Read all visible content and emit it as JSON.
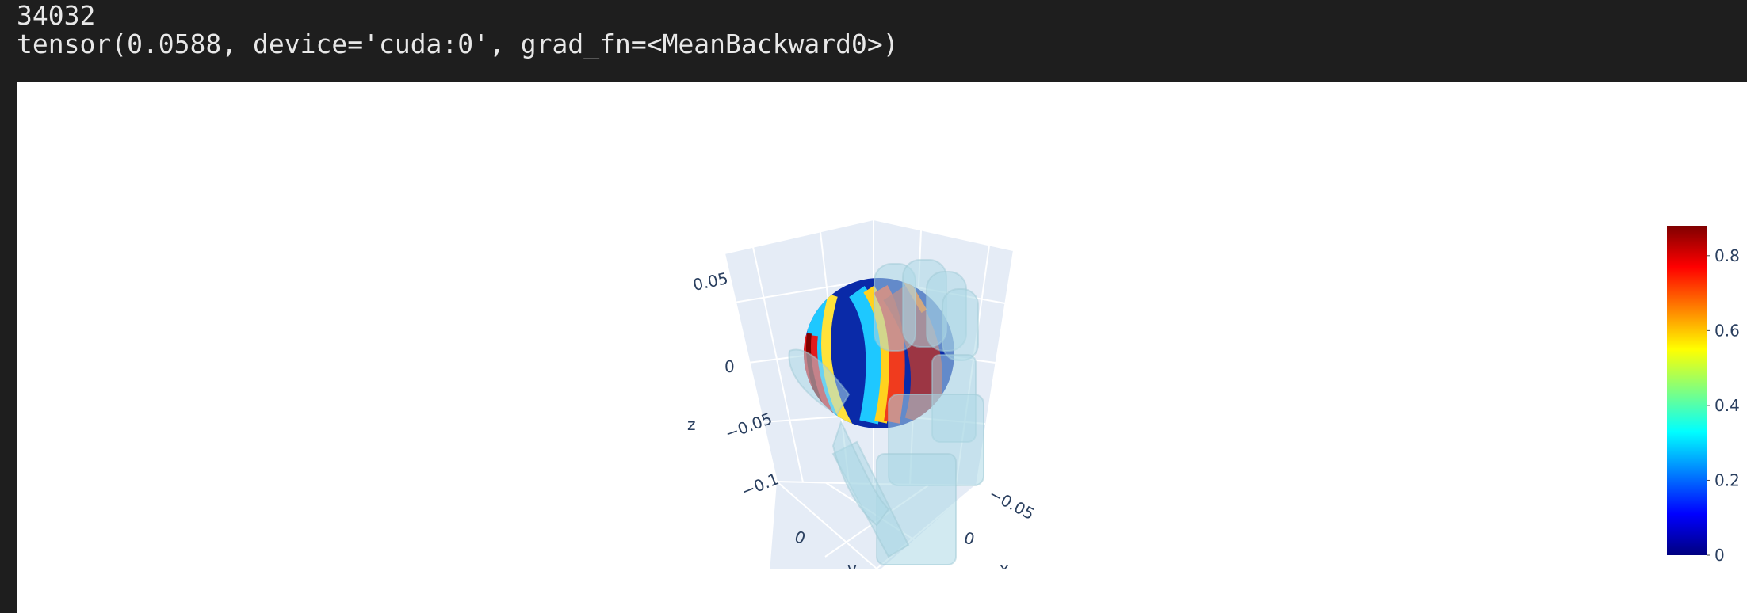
{
  "console": {
    "lines": [
      "34032",
      "tensor(0.0588, device='cuda:0', grad_fn=<MeanBackward0>)"
    ]
  },
  "chart_data": {
    "type": "scatter3d",
    "title": "",
    "scene": {
      "background": "#e5ecf6",
      "z_axis": {
        "title": "z",
        "ticks": [
          "0.05",
          "0",
          "−0.05",
          "−0.1"
        ]
      },
      "x_axis": {
        "title": "x",
        "ticks": [
          "−0.05",
          "0"
        ]
      },
      "y_axis": {
        "title": "y",
        "ticks": [
          "0"
        ]
      }
    },
    "colorbar": {
      "colorscale": "Jet",
      "range": [
        0,
        0.88
      ],
      "ticks": [
        0,
        0.2,
        0.4,
        0.6,
        0.8
      ],
      "tick_labels": [
        "0",
        "0.2",
        "0.4",
        "0.6",
        "0.8"
      ]
    },
    "objects": [
      "point-cloud-sphere",
      "hand-mesh"
    ],
    "hand_mesh_color": "#add8e6"
  }
}
